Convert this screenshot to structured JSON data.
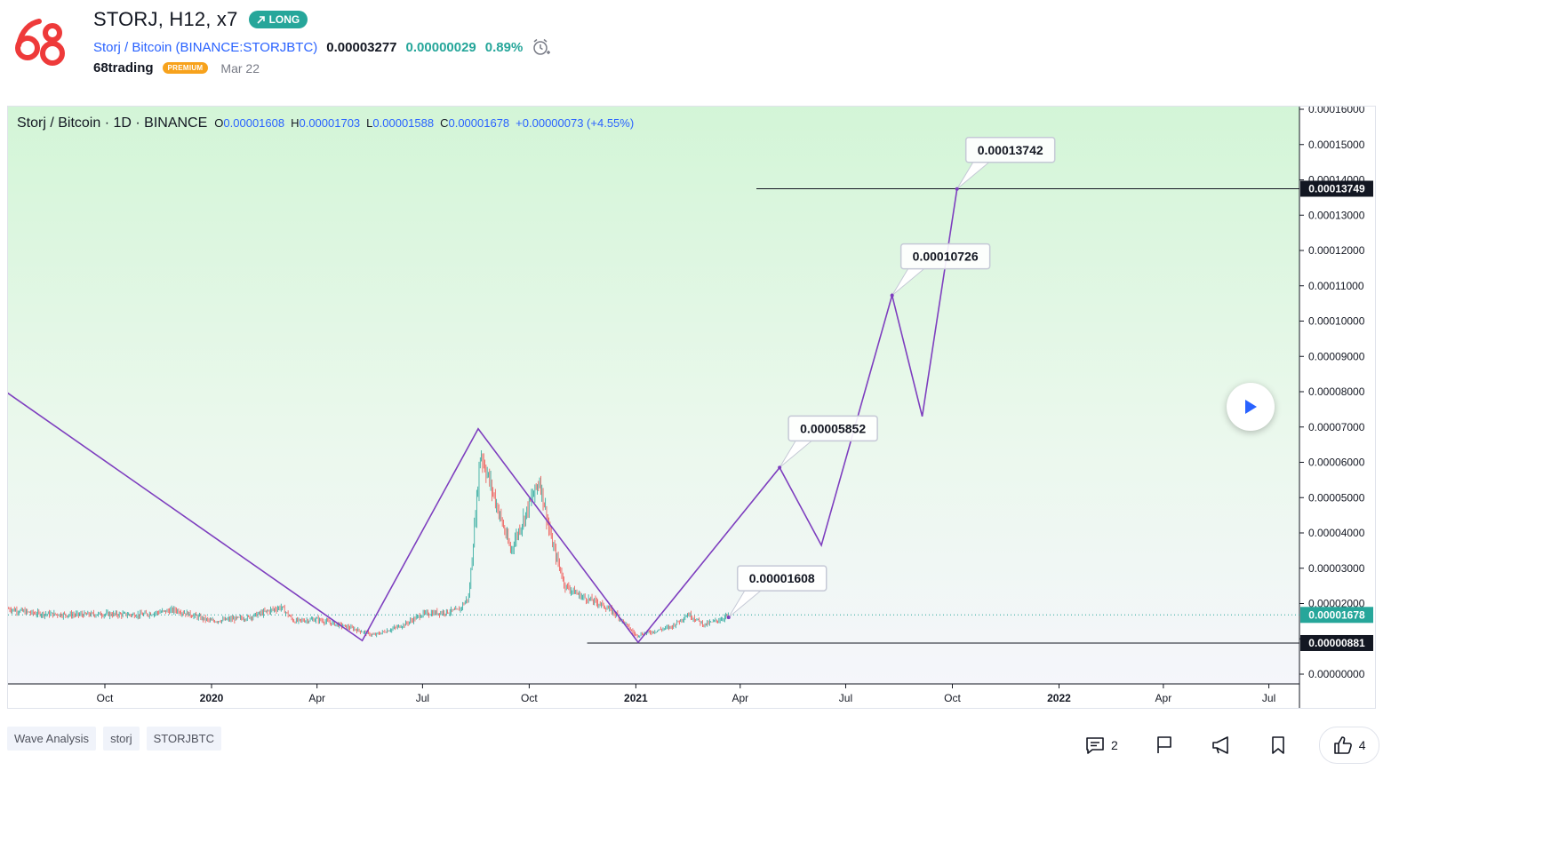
{
  "header": {
    "title": "STORJ, H12, x7",
    "badge": "LONG",
    "symbol_name": "Storj / Bitcoin",
    "symbol_exchange": "(BINANCE:STORJBTC)",
    "price": "0.00003277",
    "change": "0.00000029",
    "change_pct": "0.89%",
    "author": "68trading",
    "author_badge": "PREMIUM",
    "date": "Mar 22",
    "icons": {
      "logo": "68trading-logo",
      "alarm": "alarm-clock-icon",
      "badge": "arrow-up-right-icon"
    }
  },
  "chart": {
    "legend": {
      "name": "Storj / Bitcoin · 1D · BINANCE",
      "o_label": "O",
      "o": "0.00001608",
      "h_label": "H",
      "h": "0.00001703",
      "l_label": "L",
      "l": "0.00001588",
      "c_label": "C",
      "c": "0.00001678",
      "change": "+0.00000073 (+4.55%)"
    },
    "price_labels": {
      "target": "0.00013749",
      "current": "0.00001678",
      "support": "0.00000881"
    },
    "colors": {
      "wave": "#7e3fbf",
      "up": "#26a69a",
      "down": "#ef5350",
      "current": "#26a69a",
      "axis_text": "#131722"
    }
  },
  "chart_data": {
    "type": "line",
    "title": "Storj / Bitcoin · 1D · BINANCE",
    "y_axis": {
      "min": 0,
      "max": 0.00016,
      "step": 1e-05,
      "ticks": [
        "0.00000000",
        "0.00001000",
        "0.00002000",
        "0.00003000",
        "0.00004000",
        "0.00005000",
        "0.00006000",
        "0.00007000",
        "0.00008000",
        "0.00009000",
        "0.00010000",
        "0.00011000",
        "0.00012000",
        "0.00013000",
        "0.00014000",
        "0.00015000",
        "0.00016000"
      ]
    },
    "x_axis": {
      "ticks": [
        {
          "label": "Oct",
          "date": "2019-10-01",
          "bold": false
        },
        {
          "label": "2020",
          "date": "2020-01-01",
          "bold": true
        },
        {
          "label": "Apr",
          "date": "2020-04-01",
          "bold": false
        },
        {
          "label": "Jul",
          "date": "2020-07-01",
          "bold": false
        },
        {
          "label": "Oct",
          "date": "2020-10-01",
          "bold": false
        },
        {
          "label": "2021",
          "date": "2021-01-01",
          "bold": true
        },
        {
          "label": "Apr",
          "date": "2021-04-01",
          "bold": false
        },
        {
          "label": "Jul",
          "date": "2021-07-01",
          "bold": false
        },
        {
          "label": "Oct",
          "date": "2021-10-01",
          "bold": false
        },
        {
          "label": "2022",
          "date": "2022-01-01",
          "bold": true
        },
        {
          "label": "Apr",
          "date": "2022-04-01",
          "bold": false
        },
        {
          "label": "Jul",
          "date": "2022-07-01",
          "bold": false
        }
      ]
    },
    "price_series": {
      "name": "STORJBTC",
      "points": [
        [
          "2019-07-10",
          1.85e-05
        ],
        [
          "2019-08-01",
          1.72e-05
        ],
        [
          "2019-09-01",
          1.68e-05
        ],
        [
          "2019-10-01",
          1.7e-05
        ],
        [
          "2019-11-01",
          1.68e-05
        ],
        [
          "2019-12-01",
          1.82e-05
        ],
        [
          "2020-01-01",
          1.5e-05
        ],
        [
          "2020-02-01",
          1.6e-05
        ],
        [
          "2020-02-20",
          1.8e-05
        ],
        [
          "2020-03-01",
          1.9e-05
        ],
        [
          "2020-03-12",
          1.5e-05
        ],
        [
          "2020-04-01",
          1.55e-05
        ],
        [
          "2020-05-01",
          1.3e-05
        ],
        [
          "2020-05-20",
          1.1e-05
        ],
        [
          "2020-06-15",
          1.4e-05
        ],
        [
          "2020-07-01",
          1.7e-05
        ],
        [
          "2020-08-01",
          1.8e-05
        ],
        [
          "2020-08-10",
          2.2e-05
        ],
        [
          "2020-08-20",
          6.3e-05
        ],
        [
          "2020-09-01",
          5e-05
        ],
        [
          "2020-09-15",
          3.5e-05
        ],
        [
          "2020-10-01",
          4.8e-05
        ],
        [
          "2020-10-10",
          5.5e-05
        ],
        [
          "2020-10-20",
          3.8e-05
        ],
        [
          "2020-11-01",
          2.5e-05
        ],
        [
          "2020-11-15",
          2.2e-05
        ],
        [
          "2020-12-01",
          2e-05
        ],
        [
          "2020-12-15",
          1.7e-05
        ],
        [
          "2021-01-01",
          1.1e-05
        ],
        [
          "2021-01-15",
          1.2e-05
        ],
        [
          "2021-02-01",
          1.35e-05
        ],
        [
          "2021-02-15",
          1.7e-05
        ],
        [
          "2021-03-01",
          1.4e-05
        ],
        [
          "2021-03-15",
          1.55e-05
        ],
        [
          "2021-03-22",
          1.68e-05
        ]
      ]
    },
    "wave_projection": {
      "name": "Wave",
      "points": [
        [
          "2019-07-01",
          8.15e-05
        ],
        [
          "2020-05-10",
          9.5e-06
        ],
        [
          "2020-08-18",
          6.95e-05
        ],
        [
          "2021-01-03",
          9e-06
        ],
        [
          "2021-05-05",
          5.85e-05
        ],
        [
          "2021-06-10",
          3.65e-05
        ],
        [
          "2021-08-10",
          0.0001073
        ],
        [
          "2021-09-05",
          7.3e-05
        ],
        [
          "2021-10-05",
          0.0001374
        ]
      ]
    },
    "callouts": [
      {
        "text": "0.00001608",
        "x": "2021-03-22",
        "y": 1.608e-05
      },
      {
        "text": "0.00005852",
        "x": "2021-05-05",
        "y": 5.852e-05
      },
      {
        "text": "0.00010726",
        "x": "2021-08-10",
        "y": 0.00010726
      },
      {
        "text": "0.00013742",
        "x": "2021-10-05",
        "y": 0.00013742
      }
    ],
    "horizontal_lines": [
      {
        "y": 0.00013749,
        "from": "2021-04-15"
      },
      {
        "y": 8.81e-06,
        "from": "2020-11-20"
      }
    ],
    "current_price": 1.678e-05,
    "grid": false
  },
  "footer": {
    "tags": [
      "Wave Analysis",
      "storj",
      "STORJBTC"
    ],
    "comments": "2",
    "likes": "4",
    "icons": [
      "comment-icon",
      "flag-icon",
      "megaphone-icon",
      "bookmark-icon",
      "thumbs-up-icon"
    ]
  }
}
